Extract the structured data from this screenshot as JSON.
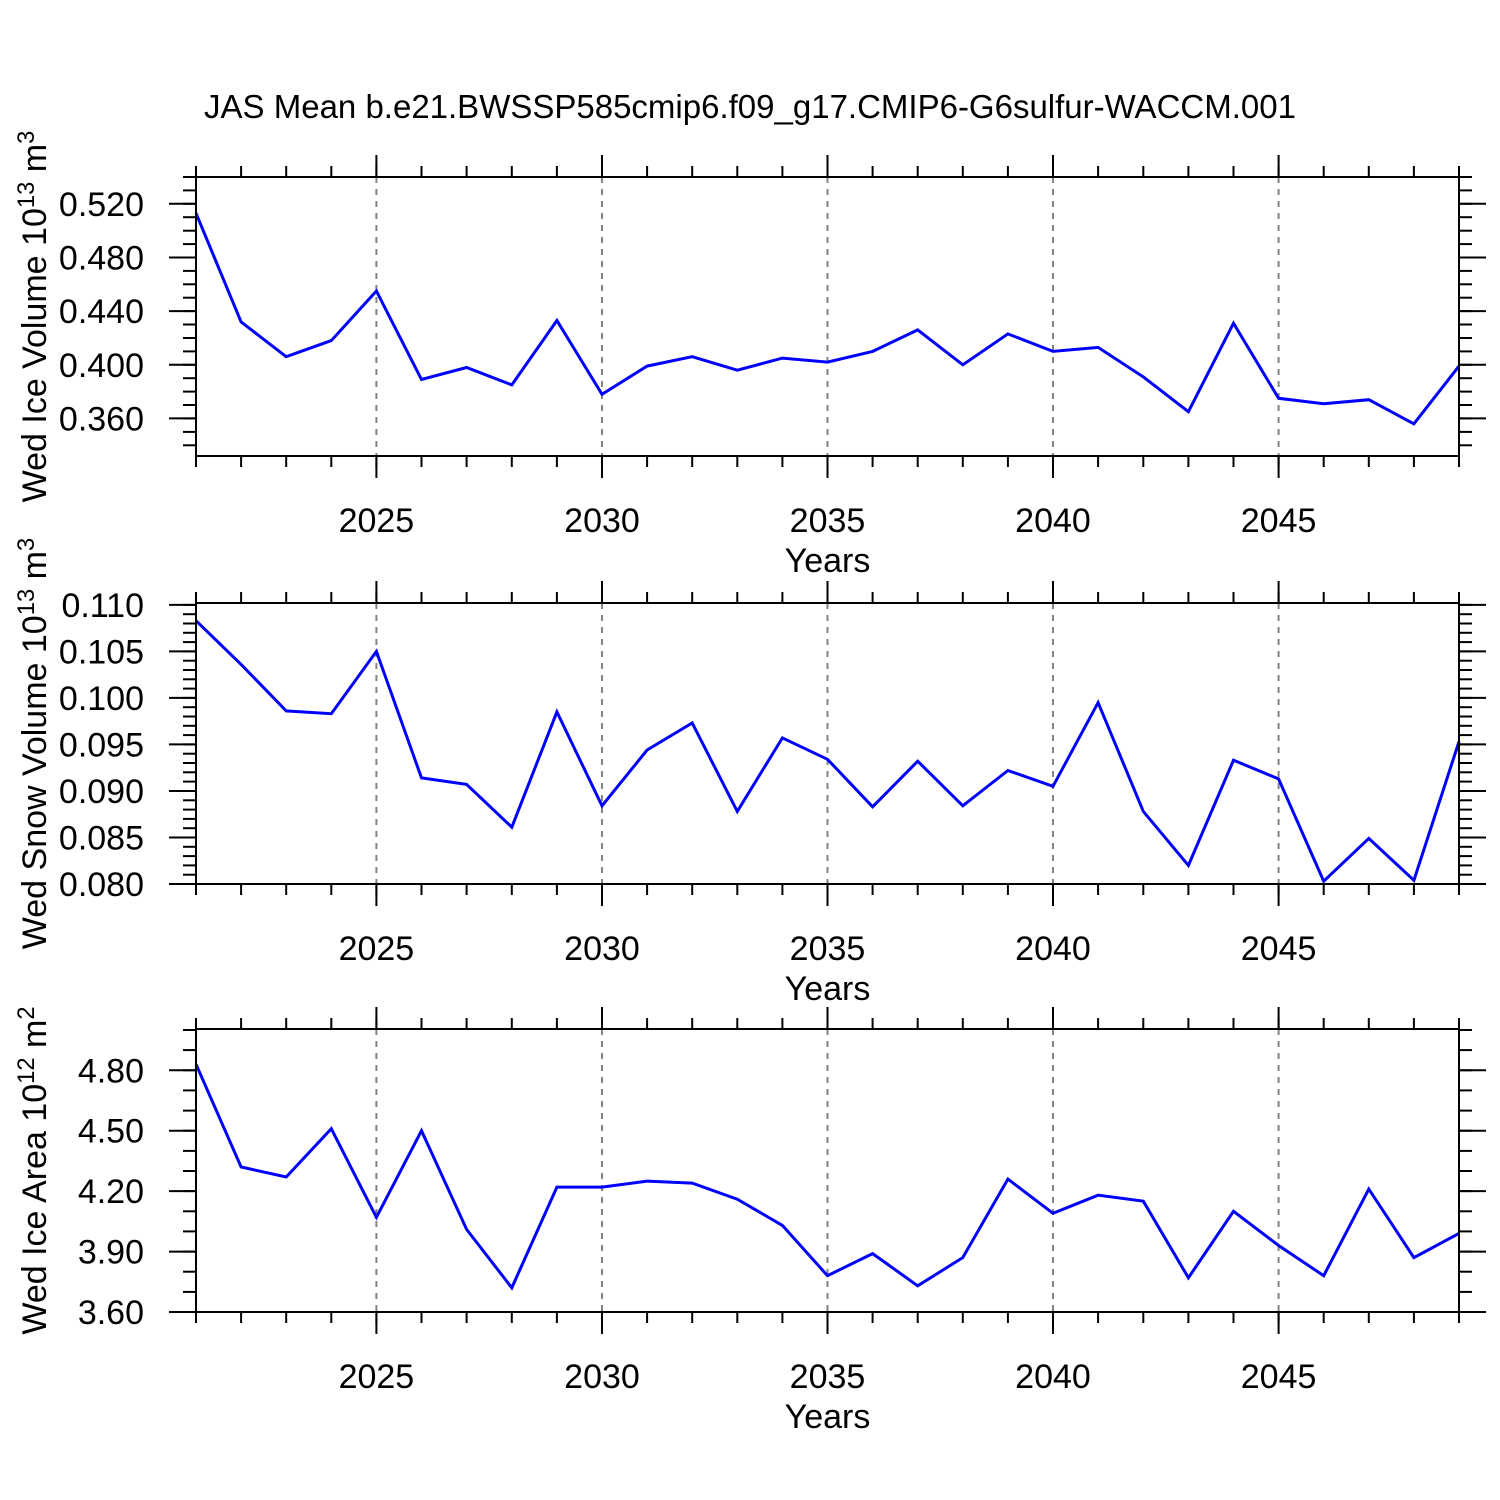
{
  "title": "JAS Mean b.e21.BWSSP585cmip6.f09_g17.CMIP6-G6sulfur-WACCM.001",
  "colors": {
    "line": "#0000ff",
    "grid": "#848484",
    "axis": "#000000",
    "text": "#000000",
    "background": "#ffffff"
  },
  "chart_data": [
    {
      "id": "ice-volume",
      "type": "line",
      "ylabel": "Wed Ice Volume 10^13 m^3",
      "xlabel": "Years",
      "x": [
        2021,
        2022,
        2023,
        2024,
        2025,
        2026,
        2027,
        2028,
        2029,
        2030,
        2031,
        2032,
        2033,
        2034,
        2035,
        2036,
        2037,
        2038,
        2039,
        2040,
        2041,
        2042,
        2043,
        2044,
        2045,
        2046,
        2047,
        2048,
        2049
      ],
      "values": [
        0.513,
        0.432,
        0.406,
        0.418,
        0.455,
        0.389,
        0.398,
        0.385,
        0.433,
        0.378,
        0.399,
        0.406,
        0.396,
        0.405,
        0.402,
        0.41,
        0.426,
        0.4,
        0.423,
        0.41,
        0.413,
        0.391,
        0.365,
        0.431,
        0.375,
        0.371,
        0.374,
        0.356,
        0.399
      ],
      "xlim": [
        2021,
        2049
      ],
      "ylim": [
        0.332,
        0.54
      ],
      "yticks": [
        {
          "v": 0.36,
          "label": "0.360"
        },
        {
          "v": 0.4,
          "label": "0.400"
        },
        {
          "v": 0.44,
          "label": "0.440"
        },
        {
          "v": 0.48,
          "label": "0.480"
        },
        {
          "v": 0.52,
          "label": "0.520"
        }
      ],
      "ytick_minor_step": 0.01,
      "xticks": [
        {
          "v": 2025,
          "label": "2025"
        },
        {
          "v": 2030,
          "label": "2030"
        },
        {
          "v": 2035,
          "label": "2035"
        },
        {
          "v": 2040,
          "label": "2040"
        },
        {
          "v": 2045,
          "label": "2045"
        }
      ],
      "xtick_minor_step": 1,
      "grid_x": [
        2025,
        2030,
        2035,
        2040,
        2045
      ],
      "grid_style": "vertical-dashed"
    },
    {
      "id": "snow-volume",
      "type": "line",
      "ylabel": "Wed Snow Volume 10^13 m^3",
      "xlabel": "Years",
      "x": [
        2021,
        2022,
        2023,
        2024,
        2025,
        2026,
        2027,
        2028,
        2029,
        2030,
        2031,
        2032,
        2033,
        2034,
        2035,
        2036,
        2037,
        2038,
        2039,
        2040,
        2041,
        2042,
        2043,
        2044,
        2045,
        2046,
        2047,
        2048,
        2049
      ],
      "values": [
        0.1083,
        0.1036,
        0.0986,
        0.0983,
        0.105,
        0.0914,
        0.0907,
        0.0861,
        0.0985,
        0.0884,
        0.0944,
        0.0973,
        0.0878,
        0.0957,
        0.0934,
        0.0883,
        0.0932,
        0.0884,
        0.0922,
        0.0905,
        0.0995,
        0.0878,
        0.082,
        0.0933,
        0.0913,
        0.0803,
        0.0849,
        0.0804,
        0.0953
      ],
      "xlim": [
        2021,
        2049
      ],
      "ylim": [
        0.08,
        0.1102
      ],
      "yticks": [
        {
          "v": 0.08,
          "label": "0.080"
        },
        {
          "v": 0.085,
          "label": "0.085"
        },
        {
          "v": 0.09,
          "label": "0.090"
        },
        {
          "v": 0.095,
          "label": "0.095"
        },
        {
          "v": 0.1,
          "label": "0.100"
        },
        {
          "v": 0.105,
          "label": "0.105"
        },
        {
          "v": 0.11,
          "label": "0.110"
        }
      ],
      "ytick_minor_step": 0.001,
      "xticks": [
        {
          "v": 2025,
          "label": "2025"
        },
        {
          "v": 2030,
          "label": "2030"
        },
        {
          "v": 2035,
          "label": "2035"
        },
        {
          "v": 2040,
          "label": "2040"
        },
        {
          "v": 2045,
          "label": "2045"
        }
      ],
      "xtick_minor_step": 1,
      "grid_x": [
        2025,
        2030,
        2035,
        2040,
        2045
      ],
      "grid_style": "vertical-dashed"
    },
    {
      "id": "ice-area",
      "type": "line",
      "ylabel": "Wed Ice Area 10^12 m^2",
      "xlabel": "Years",
      "x": [
        2021,
        2022,
        2023,
        2024,
        2025,
        2026,
        2027,
        2028,
        2029,
        2030,
        2031,
        2032,
        2033,
        2034,
        2035,
        2036,
        2037,
        2038,
        2039,
        2040,
        2041,
        2042,
        2043,
        2044,
        2045,
        2046,
        2047,
        2048,
        2049
      ],
      "values": [
        4.83,
        4.32,
        4.27,
        4.51,
        4.07,
        4.5,
        4.01,
        3.72,
        4.22,
        4.22,
        4.25,
        4.24,
        4.16,
        4.03,
        3.78,
        3.89,
        3.73,
        3.87,
        4.26,
        4.09,
        4.18,
        4.15,
        3.77,
        4.1,
        3.93,
        3.78,
        4.21,
        3.87,
        3.99
      ],
      "xlim": [
        2021,
        2049
      ],
      "ylim": [
        3.6,
        5.005
      ],
      "yticks": [
        {
          "v": 3.6,
          "label": "3.60"
        },
        {
          "v": 3.9,
          "label": "3.90"
        },
        {
          "v": 4.2,
          "label": "4.20"
        },
        {
          "v": 4.5,
          "label": "4.50"
        },
        {
          "v": 4.8,
          "label": "4.80"
        }
      ],
      "ytick_minor_step": 0.1,
      "xticks": [
        {
          "v": 2025,
          "label": "2025"
        },
        {
          "v": 2030,
          "label": "2030"
        },
        {
          "v": 2035,
          "label": "2035"
        },
        {
          "v": 2040,
          "label": "2040"
        },
        {
          "v": 2045,
          "label": "2045"
        }
      ],
      "xtick_minor_step": 1,
      "grid_x": [
        2025,
        2030,
        2035,
        2040,
        2045
      ],
      "grid_style": "vertical-dashed"
    }
  ]
}
